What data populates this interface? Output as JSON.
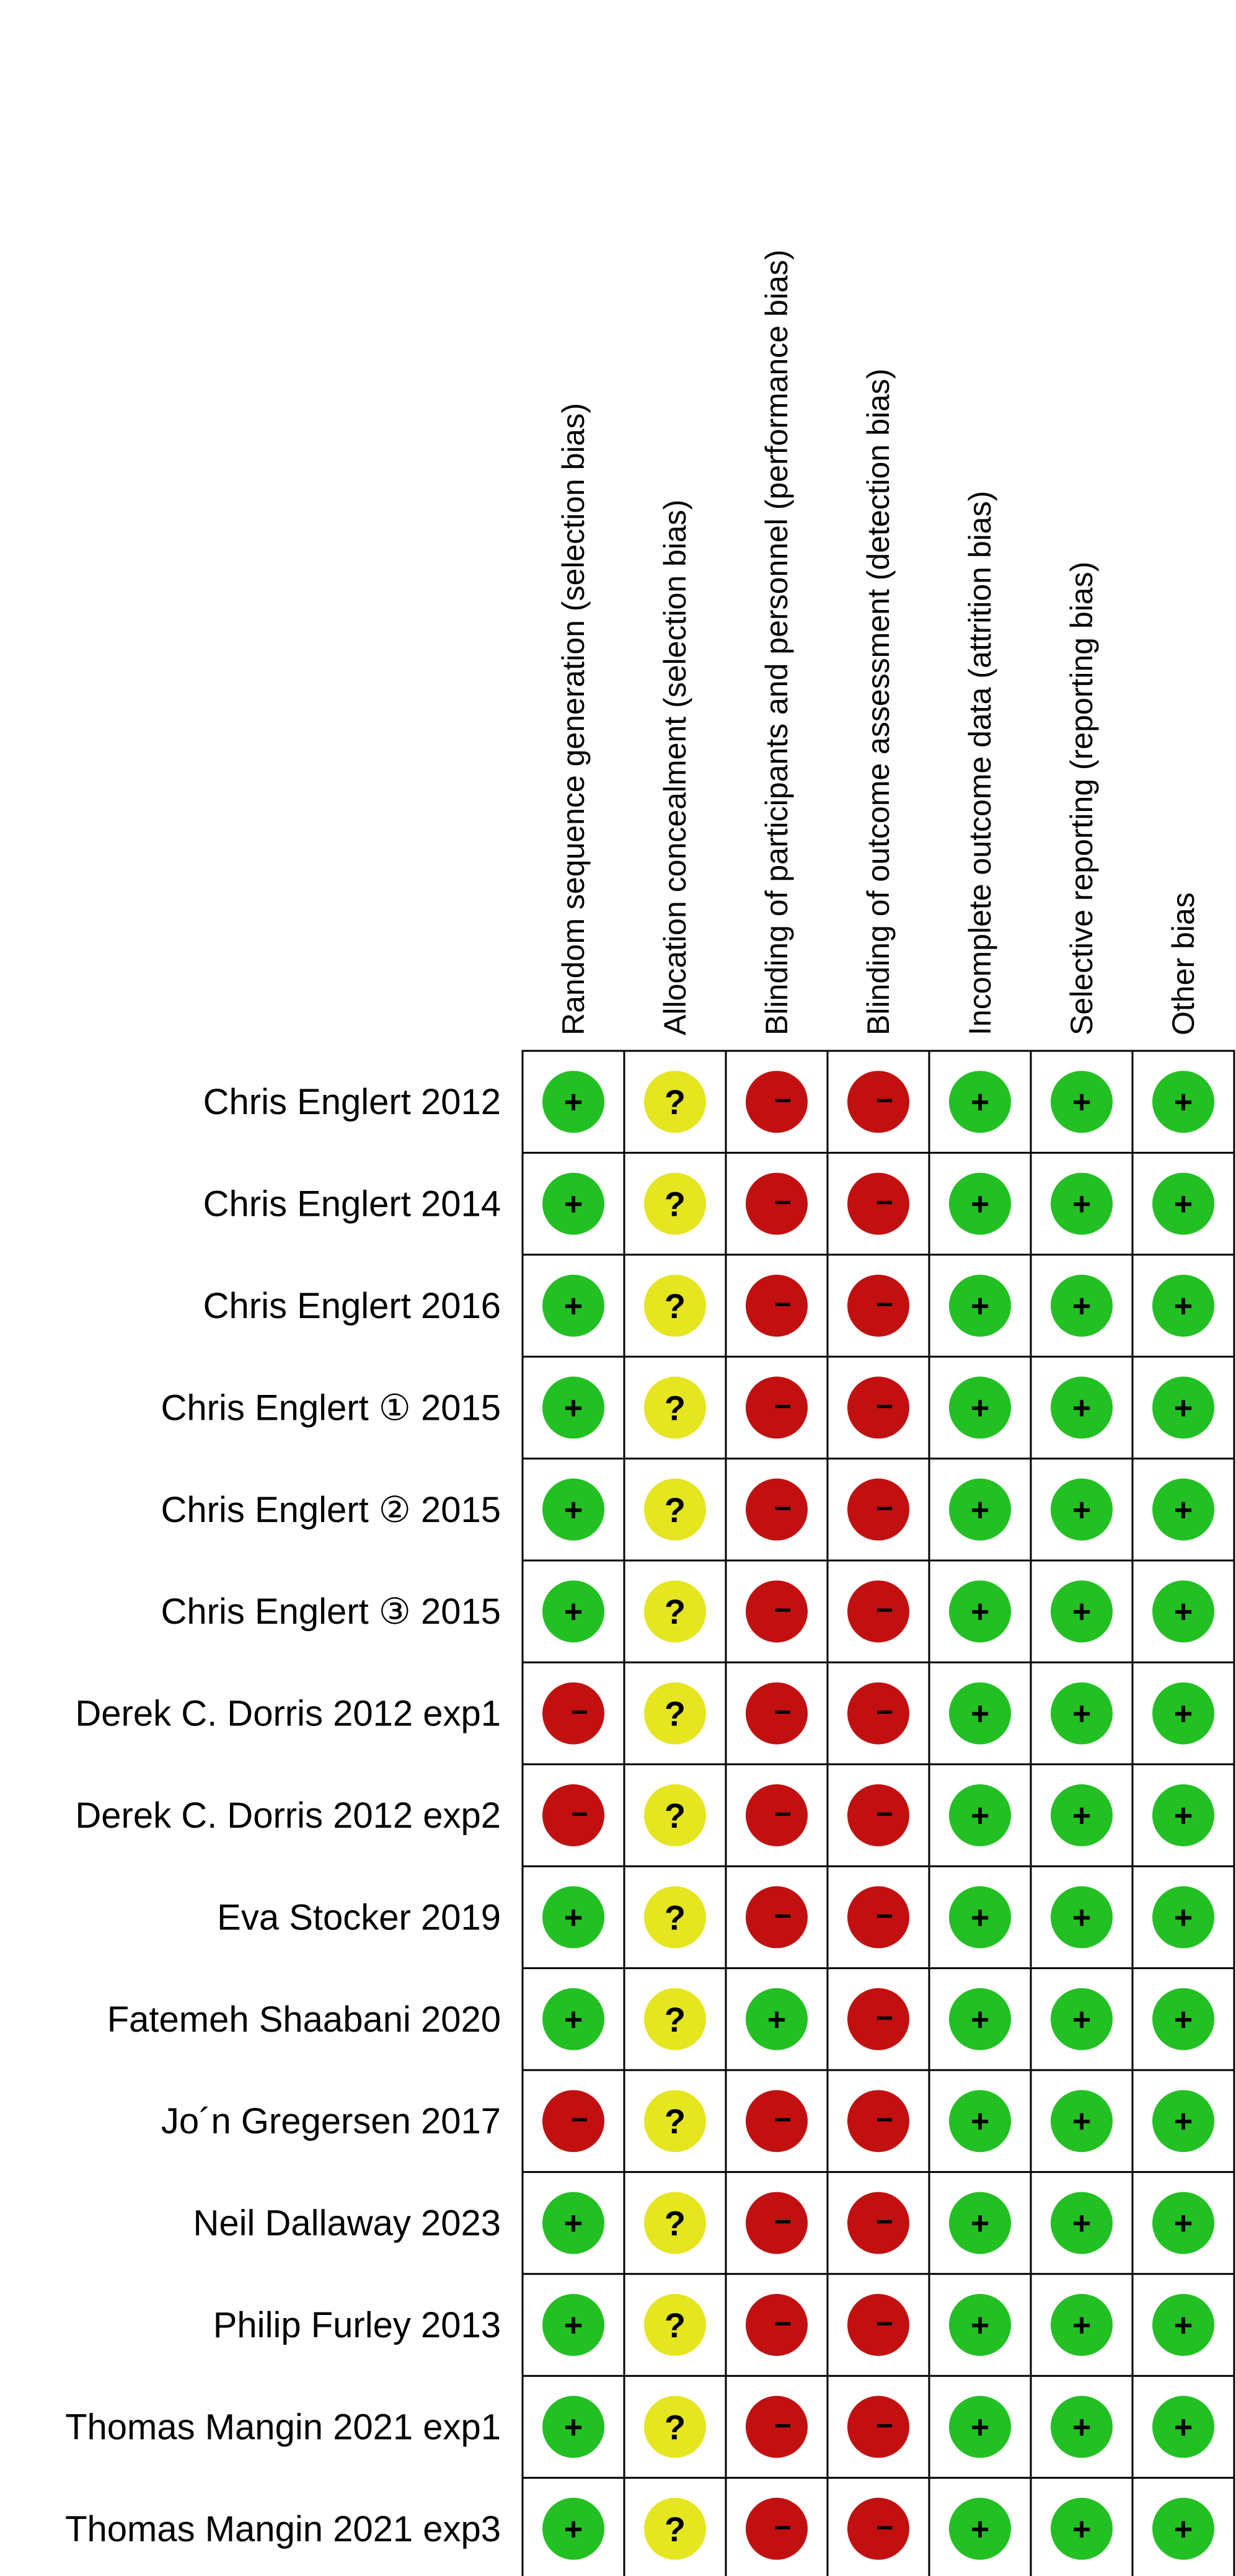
{
  "chart_data": {
    "type": "table",
    "columns": [
      "Random sequence generation (selection bias)",
      "Allocation concealment (selection bias)",
      "Blinding of participants and personnel (performance bias)",
      "Blinding of outcome assessment (detection bias)",
      "Incomplete outcome data (attrition bias)",
      "Selective reporting (reporting bias)",
      "Other bias"
    ],
    "rows": [
      {
        "study": "Chris Englert 2012",
        "ratings": [
          "low",
          "unclear",
          "high",
          "high",
          "low",
          "low",
          "low"
        ]
      },
      {
        "study": "Chris Englert 2014",
        "ratings": [
          "low",
          "unclear",
          "high",
          "high",
          "low",
          "low",
          "low"
        ]
      },
      {
        "study": "Chris Englert 2016",
        "ratings": [
          "low",
          "unclear",
          "high",
          "high",
          "low",
          "low",
          "low"
        ]
      },
      {
        "study": "Chris Englert ① 2015",
        "ratings": [
          "low",
          "unclear",
          "high",
          "high",
          "low",
          "low",
          "low"
        ]
      },
      {
        "study": "Chris Englert ② 2015",
        "ratings": [
          "low",
          "unclear",
          "high",
          "high",
          "low",
          "low",
          "low"
        ]
      },
      {
        "study": "Chris Englert ③ 2015",
        "ratings": [
          "low",
          "unclear",
          "high",
          "high",
          "low",
          "low",
          "low"
        ]
      },
      {
        "study": "Derek C. Dorris 2012 exp1",
        "ratings": [
          "high",
          "unclear",
          "high",
          "high",
          "low",
          "low",
          "low"
        ]
      },
      {
        "study": "Derek C. Dorris 2012 exp2",
        "ratings": [
          "high",
          "unclear",
          "high",
          "high",
          "low",
          "low",
          "low"
        ]
      },
      {
        "study": "Eva Stocker 2019",
        "ratings": [
          "low",
          "unclear",
          "high",
          "high",
          "low",
          "low",
          "low"
        ]
      },
      {
        "study": "Fatemeh Shaabani 2020",
        "ratings": [
          "low",
          "unclear",
          "low",
          "high",
          "low",
          "low",
          "low"
        ]
      },
      {
        "study": "Jo´n Gregersen 2017",
        "ratings": [
          "high",
          "unclear",
          "high",
          "high",
          "low",
          "low",
          "low"
        ]
      },
      {
        "study": "Neil Dallaway 2023",
        "ratings": [
          "low",
          "unclear",
          "high",
          "high",
          "low",
          "low",
          "low"
        ]
      },
      {
        "study": "Philip Furley 2013",
        "ratings": [
          "low",
          "unclear",
          "high",
          "high",
          "low",
          "low",
          "low"
        ]
      },
      {
        "study": "Thomas Mangin 2021 exp1",
        "ratings": [
          "low",
          "unclear",
          "high",
          "high",
          "low",
          "low",
          "low"
        ]
      },
      {
        "study": "Thomas Mangin 2021 exp3",
        "ratings": [
          "low",
          "unclear",
          "high",
          "high",
          "low",
          "low",
          "low"
        ]
      }
    ],
    "legend": {
      "low": {
        "symbol": "+",
        "color": "#22c022"
      },
      "unclear": {
        "symbol": "?",
        "color": "#e5e520"
      },
      "high": {
        "symbol": "−",
        "color": "#c21010"
      }
    }
  }
}
